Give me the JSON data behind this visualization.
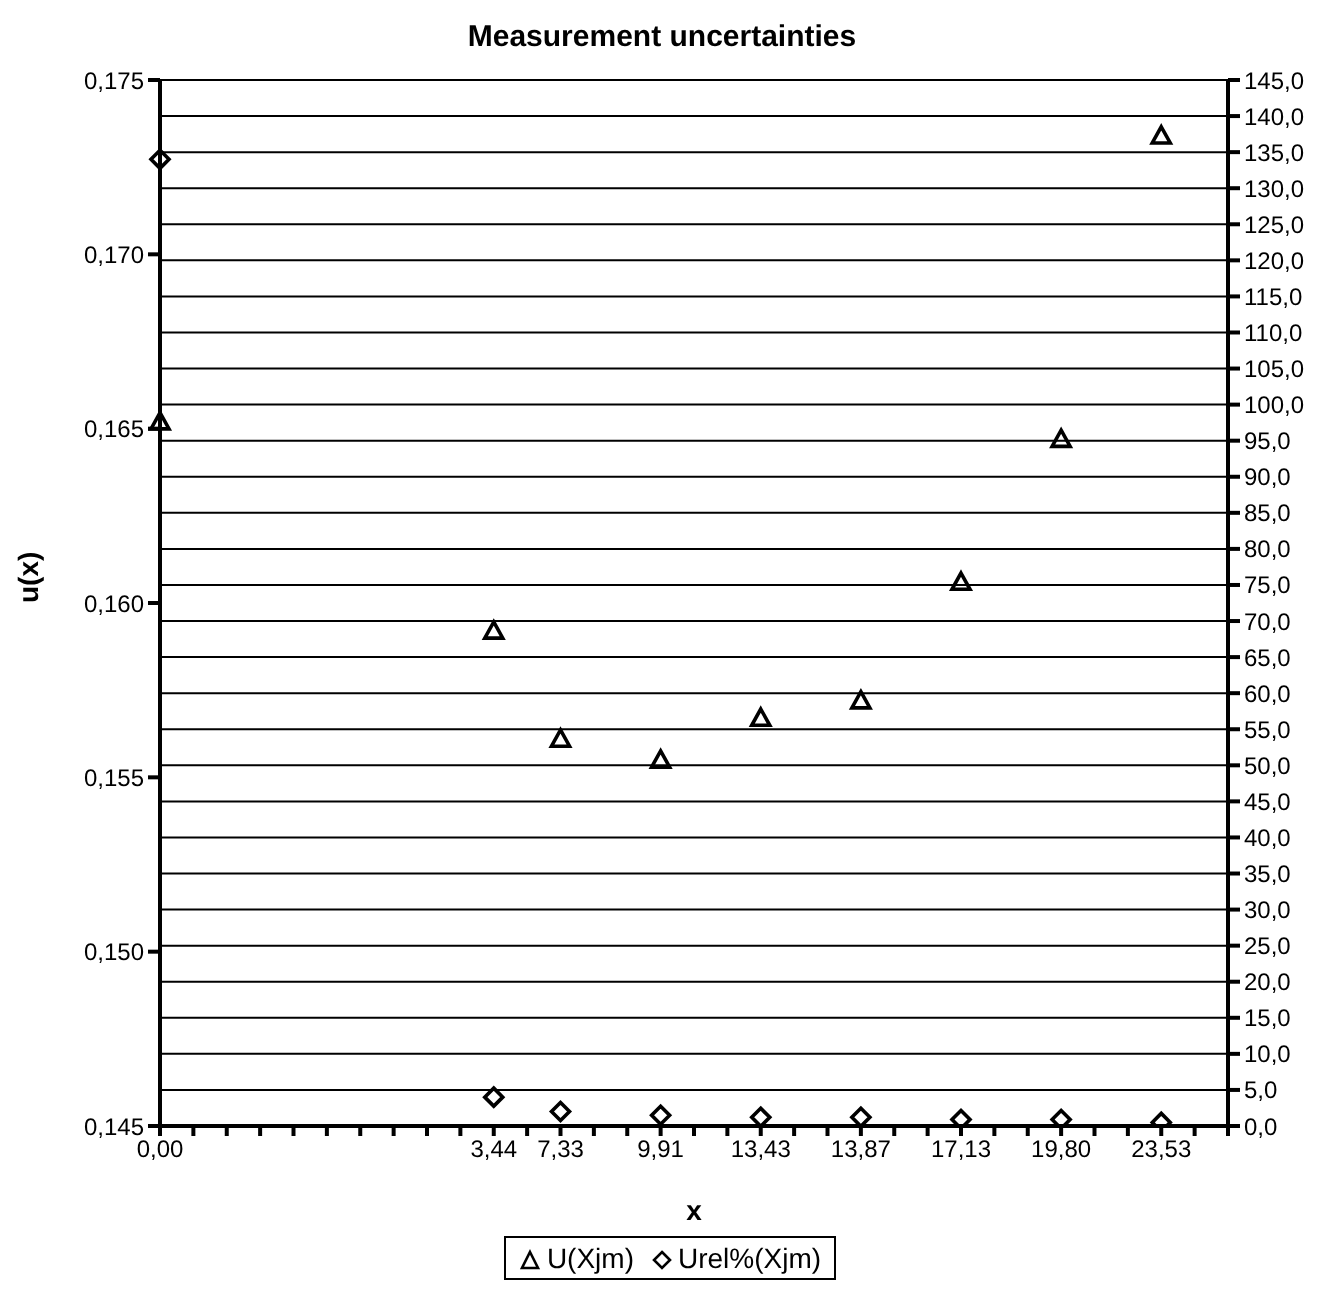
{
  "chart_data": {
    "type": "scatter",
    "title": "Measurement uncertainties",
    "xlabel": "x",
    "ylabel": "u(x)",
    "categories": [
      "0,00",
      null,
      null,
      null,
      null,
      null,
      null,
      null,
      null,
      null,
      "3,44",
      null,
      "7,33",
      null,
      null,
      "9,91",
      null,
      null,
      "13,43",
      null,
      null,
      "13,87",
      null,
      null,
      "17,13",
      null,
      null,
      "19,80",
      null,
      null,
      "23,53",
      null,
      null
    ],
    "series": [
      {
        "name": "U(Xjm)",
        "color": "#000000",
        "marker": "triangle",
        "values": [
          0.1652,
          null,
          null,
          null,
          null,
          null,
          null,
          null,
          null,
          null,
          0.1592,
          null,
          0.1561,
          null,
          null,
          0.1555,
          null,
          null,
          0.1567,
          null,
          null,
          0.1572,
          null,
          null,
          0.1606,
          null,
          null,
          0.1647,
          null,
          null,
          0.1734,
          null,
          null
        ]
      },
      {
        "name": "Urel%(Xjm)",
        "color": "#000000",
        "marker": "diamond",
        "axis": "y2",
        "values": [
          134.0,
          null,
          null,
          null,
          null,
          null,
          null,
          null,
          null,
          null,
          4.0,
          null,
          2.0,
          null,
          null,
          1.5,
          null,
          null,
          1.2,
          null,
          null,
          1.2,
          null,
          null,
          0.9,
          null,
          null,
          0.9,
          null,
          null,
          0.5,
          null,
          null
        ]
      }
    ],
    "ylim": [
      0.145,
      0.175
    ],
    "yticks": [
      {
        "value": 0.145,
        "label": "0,145"
      },
      {
        "value": 0.15,
        "label": "0,150"
      },
      {
        "value": 0.155,
        "label": "0,155"
      },
      {
        "value": 0.16,
        "label": "0,160"
      },
      {
        "value": 0.165,
        "label": "0,165"
      },
      {
        "value": 0.17,
        "label": "0,170"
      },
      {
        "value": 0.175,
        "label": "0,175"
      }
    ],
    "y2lim": [
      0,
      145
    ],
    "y2ticks": [
      {
        "value": 0,
        "label": "0,0"
      },
      {
        "value": 5,
        "label": "5,0"
      },
      {
        "value": 10,
        "label": "10,0"
      },
      {
        "value": 15,
        "label": "15,0"
      },
      {
        "value": 20,
        "label": "20,0"
      },
      {
        "value": 25,
        "label": "25,0"
      },
      {
        "value": 30,
        "label": "30,0"
      },
      {
        "value": 35,
        "label": "35,0"
      },
      {
        "value": 40,
        "label": "40,0"
      },
      {
        "value": 45,
        "label": "45,0"
      },
      {
        "value": 50,
        "label": "50,0"
      },
      {
        "value": 55,
        "label": "55,0"
      },
      {
        "value": 60,
        "label": "60,0"
      },
      {
        "value": 65,
        "label": "65,0"
      },
      {
        "value": 70,
        "label": "70,0"
      },
      {
        "value": 75,
        "label": "75,0"
      },
      {
        "value": 80,
        "label": "80,0"
      },
      {
        "value": 85,
        "label": "85,0"
      },
      {
        "value": 90,
        "label": "90,0"
      },
      {
        "value": 95,
        "label": "95,0"
      },
      {
        "value": 100,
        "label": "100,0"
      },
      {
        "value": 105,
        "label": "105,0"
      },
      {
        "value": 110,
        "label": "110,0"
      },
      {
        "value": 115,
        "label": "115,0"
      },
      {
        "value": 120,
        "label": "120,0"
      },
      {
        "value": 125,
        "label": "125,0"
      },
      {
        "value": 130,
        "label": "130,0"
      },
      {
        "value": 135,
        "label": "135,0"
      },
      {
        "value": 140,
        "label": "140,0"
      },
      {
        "value": 145,
        "label": "145,0"
      }
    ],
    "grid": "y2",
    "legend": "bottom"
  }
}
